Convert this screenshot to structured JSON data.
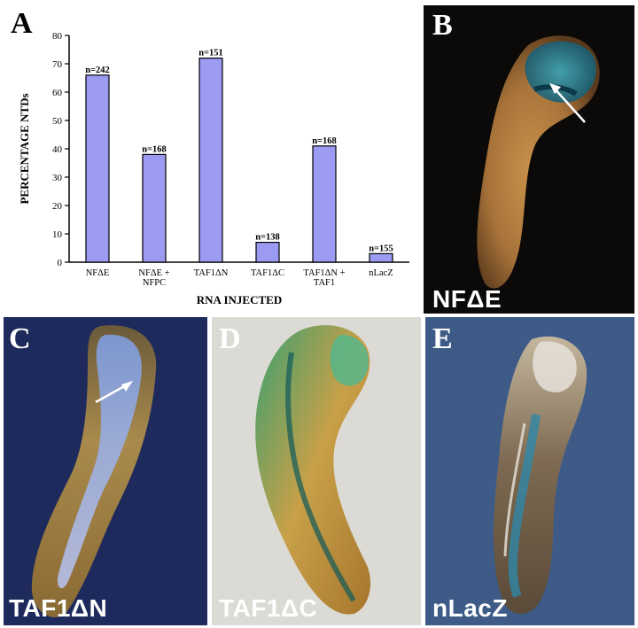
{
  "panels": {
    "a": {
      "letter": "A"
    },
    "b": {
      "letter": "B",
      "caption": "NFΔE"
    },
    "c": {
      "letter": "C",
      "caption": "TAF1ΔN"
    },
    "d": {
      "letter": "D",
      "caption": "TAF1ΔC"
    },
    "e": {
      "letter": "E",
      "caption": "nLacZ"
    }
  },
  "colors": {
    "bar": "#9b9bf2",
    "bar_stroke": "#000000"
  },
  "chart_data": {
    "type": "bar",
    "categories": [
      [
        "NFΔE"
      ],
      [
        "NFΔE +",
        "NFPC"
      ],
      [
        "TAF1ΔN"
      ],
      [
        "TAF1ΔC"
      ],
      [
        "TAF1ΔN +",
        "TAF1"
      ],
      [
        "nLacZ"
      ]
    ],
    "values": [
      66,
      38,
      72,
      7,
      41,
      3
    ],
    "data_labels": [
      "n=242",
      "n=168",
      "n=151",
      "n=138",
      "n=168",
      "n=155"
    ],
    "xlabel": "RNA INJECTED",
    "ylabel": "PERCENTAGE NTDs",
    "ylim": [
      0,
      80
    ],
    "yticks": [
      0,
      10,
      20,
      30,
      40,
      50,
      60,
      70,
      80
    ],
    "grid": false
  }
}
